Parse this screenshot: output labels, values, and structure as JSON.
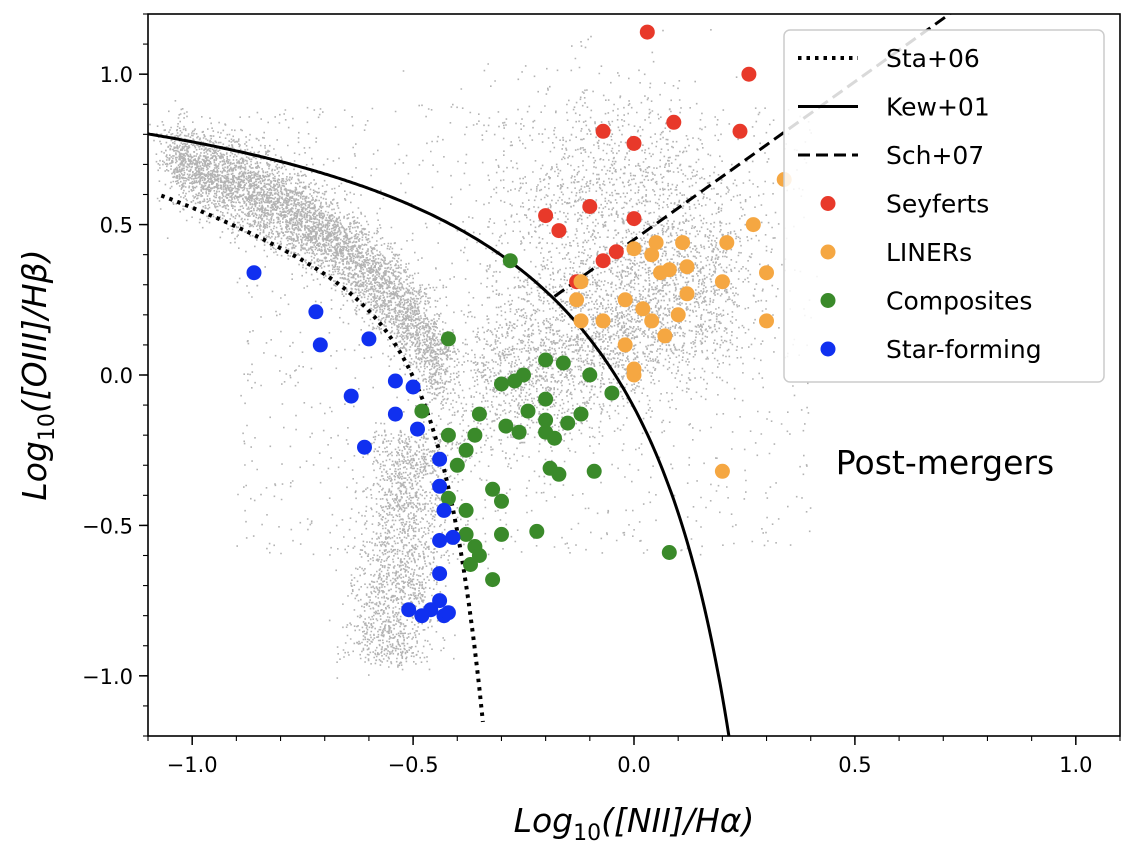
{
  "chart_data": {
    "type": "scatter",
    "title": "",
    "xlabel_main": "Log",
    "xlabel_sub": "10",
    "xlabel_rest": "([NII]/Hα)",
    "ylabel_main": "Log",
    "ylabel_sub": "10",
    "ylabel_rest": "([OIII]/Hβ)",
    "xlim": [
      -1.1,
      1.1
    ],
    "ylim": [
      -1.2,
      1.2
    ],
    "x_ticks": [
      -1.0,
      -0.5,
      0.0,
      0.5,
      1.0
    ],
    "x_tick_labels": [
      "−1.0",
      "−0.5",
      "0.0",
      "0.5",
      "1.0"
    ],
    "y_ticks": [
      -1.0,
      -0.5,
      0.0,
      0.5,
      1.0
    ],
    "y_tick_labels": [
      "−1.0",
      "−0.5",
      "0.0",
      "0.5",
      "1.0"
    ],
    "grid": false,
    "annotation": "Post-mergers",
    "legend_position": "top-right",
    "legend": [
      {
        "label": "Sta+06",
        "kind": "dotted-line",
        "color": "#000000"
      },
      {
        "label": "Kew+01",
        "kind": "solid-line",
        "color": "#000000"
      },
      {
        "label": "Sch+07",
        "kind": "dashed-line",
        "color": "#000000"
      },
      {
        "label": "Seyferts",
        "kind": "marker",
        "color": "#e8392a"
      },
      {
        "label": "LINERs",
        "kind": "marker",
        "color": "#f5a742"
      },
      {
        "label": "Composites",
        "kind": "marker",
        "color": "#3a8a2a"
      },
      {
        "label": "Star-forming",
        "kind": "marker",
        "color": "#1030f0"
      }
    ],
    "background_color": "#999999",
    "lines": {
      "kewley01": {
        "name": "Kew+01",
        "x_max": 0.2
      },
      "stasinska06": {
        "name": "Sta+06",
        "x_range": [
          -1.07,
          -0.34
        ]
      },
      "schawinski07": {
        "name": "Sch+07",
        "x_range": [
          -0.18,
          1.1
        ],
        "slope": 1.05,
        "intercept": 0.45
      }
    },
    "series": [
      {
        "name": "Seyferts",
        "color": "#e8392a",
        "points": [
          [
            0.03,
            1.14
          ],
          [
            0.26,
            1.0
          ],
          [
            -0.07,
            0.81
          ],
          [
            0.0,
            0.77
          ],
          [
            0.09,
            0.84
          ],
          [
            0.24,
            0.81
          ],
          [
            -0.2,
            0.53
          ],
          [
            -0.17,
            0.48
          ],
          [
            -0.1,
            0.56
          ],
          [
            0.0,
            0.52
          ],
          [
            -0.13,
            0.31
          ],
          [
            -0.07,
            0.38
          ],
          [
            -0.04,
            0.41
          ]
        ]
      },
      {
        "name": "LINERs",
        "color": "#f5a742",
        "points": [
          [
            0.34,
            0.65
          ],
          [
            0.27,
            0.5
          ],
          [
            0.05,
            0.44
          ],
          [
            0.11,
            0.44
          ],
          [
            0.21,
            0.44
          ],
          [
            0.08,
            0.35
          ],
          [
            0.0,
            0.42
          ],
          [
            0.04,
            0.4
          ],
          [
            -0.12,
            0.31
          ],
          [
            -0.13,
            0.25
          ],
          [
            -0.12,
            0.18
          ],
          [
            -0.07,
            0.18
          ],
          [
            -0.02,
            0.25
          ],
          [
            0.02,
            0.22
          ],
          [
            0.04,
            0.18
          ],
          [
            0.07,
            0.13
          ],
          [
            0.1,
            0.2
          ],
          [
            0.12,
            0.27
          ],
          [
            0.2,
            0.31
          ],
          [
            0.3,
            0.34
          ],
          [
            0.3,
            0.18
          ],
          [
            -0.02,
            0.1
          ],
          [
            0.0,
            0.0
          ],
          [
            0.0,
            0.02
          ],
          [
            0.2,
            -0.32
          ],
          [
            0.12,
            0.36
          ],
          [
            0.06,
            0.34
          ]
        ]
      },
      {
        "name": "Composites",
        "color": "#3a8a2a",
        "points": [
          [
            -0.28,
            0.38
          ],
          [
            -0.42,
            0.12
          ],
          [
            -0.2,
            0.05
          ],
          [
            -0.16,
            0.04
          ],
          [
            -0.3,
            -0.03
          ],
          [
            -0.25,
            0.0
          ],
          [
            -0.27,
            -0.02
          ],
          [
            -0.1,
            0.0
          ],
          [
            -0.2,
            -0.08
          ],
          [
            -0.12,
            -0.13
          ],
          [
            -0.2,
            -0.15
          ],
          [
            -0.24,
            -0.12
          ],
          [
            -0.35,
            -0.13
          ],
          [
            -0.42,
            -0.2
          ],
          [
            -0.38,
            -0.25
          ],
          [
            -0.29,
            -0.17
          ],
          [
            -0.36,
            -0.2
          ],
          [
            -0.26,
            -0.19
          ],
          [
            -0.2,
            -0.19
          ],
          [
            -0.18,
            -0.21
          ],
          [
            -0.15,
            -0.16
          ],
          [
            -0.09,
            -0.32
          ],
          [
            -0.17,
            -0.33
          ],
          [
            -0.19,
            -0.31
          ],
          [
            -0.05,
            -0.06
          ],
          [
            -0.4,
            -0.3
          ],
          [
            -0.32,
            -0.38
          ],
          [
            -0.42,
            -0.41
          ],
          [
            -0.3,
            -0.42
          ],
          [
            -0.38,
            -0.45
          ],
          [
            -0.38,
            -0.53
          ],
          [
            -0.3,
            -0.53
          ],
          [
            -0.22,
            -0.52
          ],
          [
            -0.36,
            -0.57
          ],
          [
            -0.35,
            -0.6
          ],
          [
            -0.37,
            -0.63
          ],
          [
            -0.32,
            -0.68
          ],
          [
            0.08,
            -0.59
          ],
          [
            -0.48,
            -0.12
          ]
        ]
      },
      {
        "name": "Star-forming",
        "color": "#1030f0",
        "points": [
          [
            -0.86,
            0.34
          ],
          [
            -0.72,
            0.21
          ],
          [
            -0.71,
            0.1
          ],
          [
            -0.6,
            0.12
          ],
          [
            -0.64,
            -0.07
          ],
          [
            -0.54,
            -0.02
          ],
          [
            -0.5,
            -0.04
          ],
          [
            -0.54,
            -0.13
          ],
          [
            -0.61,
            -0.24
          ],
          [
            -0.49,
            -0.18
          ],
          [
            -0.44,
            -0.28
          ],
          [
            -0.44,
            -0.37
          ],
          [
            -0.43,
            -0.45
          ],
          [
            -0.41,
            -0.54
          ],
          [
            -0.44,
            -0.55
          ],
          [
            -0.44,
            -0.66
          ],
          [
            -0.44,
            -0.75
          ],
          [
            -0.46,
            -0.78
          ],
          [
            -0.43,
            -0.8
          ],
          [
            -0.42,
            -0.79
          ],
          [
            -0.48,
            -0.8
          ],
          [
            -0.51,
            -0.78
          ]
        ]
      }
    ]
  }
}
